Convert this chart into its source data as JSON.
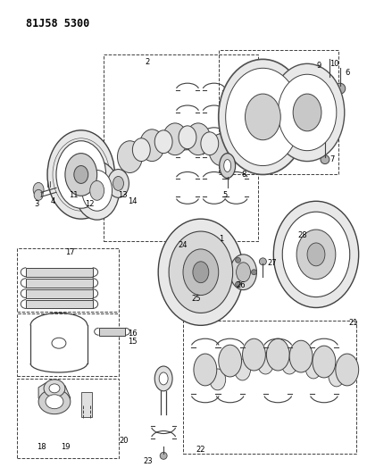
{
  "title": "81J58 5300",
  "bg_color": "#ffffff",
  "line_color": "#404040",
  "fig_width": 4.11,
  "fig_height": 5.33,
  "dpi": 100
}
